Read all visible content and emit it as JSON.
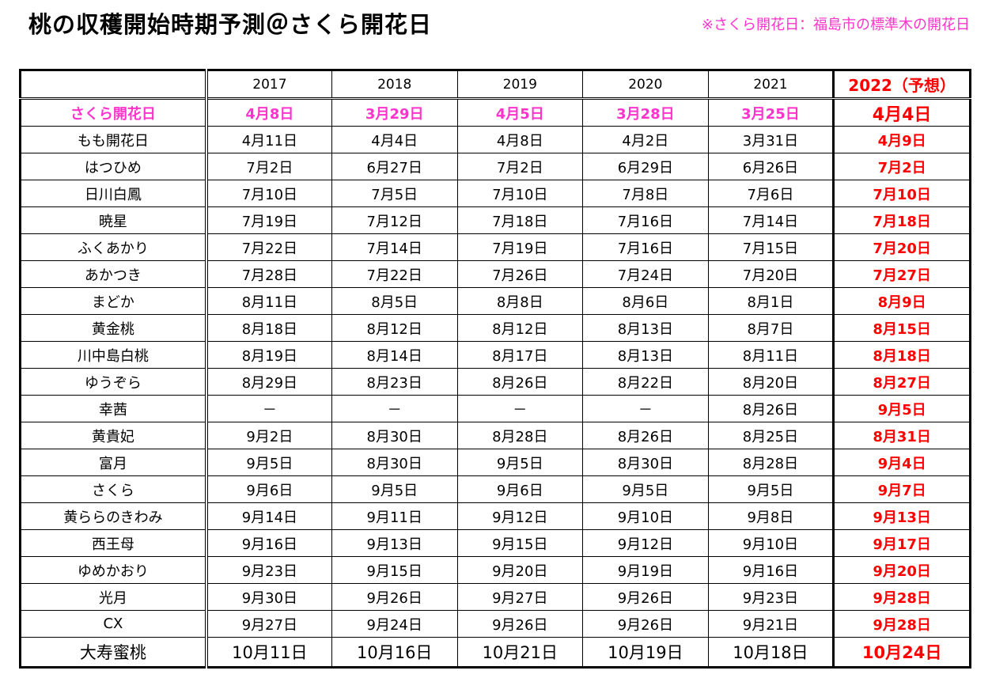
{
  "title": "桃の収穫開始時期予測＠さくら開花日",
  "note": "※さくら開花日：福島市の標準木の開花日",
  "table": {
    "headers": [
      "",
      "2017",
      "2018",
      "2019",
      "2020",
      "2021",
      "2022（予想）"
    ],
    "rows": [
      {
        "name": "さくら開花日",
        "values": [
          "4月8日",
          "3月29日",
          "4月5日",
          "3月28日",
          "3月25日"
        ],
        "prediction": "4月4日"
      },
      {
        "name": "もも開花日",
        "values": [
          "4月11日",
          "4月4日",
          "4月8日",
          "4月2日",
          "3月31日"
        ],
        "prediction": "4月9日"
      },
      {
        "name": "はつひめ",
        "values": [
          "7月2日",
          "6月27日",
          "7月2日",
          "6月29日",
          "6月26日"
        ],
        "prediction": "7月2日"
      },
      {
        "name": "日川白鳳",
        "values": [
          "7月10日",
          "7月5日",
          "7月10日",
          "7月8日",
          "7月6日"
        ],
        "prediction": "7月10日"
      },
      {
        "name": "暁星",
        "values": [
          "7月19日",
          "7月12日",
          "7月18日",
          "7月16日",
          "7月14日"
        ],
        "prediction": "7月18日"
      },
      {
        "name": "ふくあかり",
        "values": [
          "7月22日",
          "7月14日",
          "7月19日",
          "7月16日",
          "7月15日"
        ],
        "prediction": "7月20日"
      },
      {
        "name": "あかつき",
        "values": [
          "7月28日",
          "7月22日",
          "7月26日",
          "7月24日",
          "7月20日"
        ],
        "prediction": "7月27日"
      },
      {
        "name": "まどか",
        "values": [
          "8月11日",
          "8月5日",
          "8月8日",
          "8月6日",
          "8月1日"
        ],
        "prediction": "8月9日"
      },
      {
        "name": "黄金桃",
        "values": [
          "8月18日",
          "8月12日",
          "8月12日",
          "8月13日",
          "8月7日"
        ],
        "prediction": "8月15日"
      },
      {
        "name": "川中島白桃",
        "values": [
          "8月19日",
          "8月14日",
          "8月17日",
          "8月13日",
          "8月11日"
        ],
        "prediction": "8月18日"
      },
      {
        "name": "ゆうぞら",
        "values": [
          "8月29日",
          "8月23日",
          "8月26日",
          "8月22日",
          "8月20日"
        ],
        "prediction": "8月27日"
      },
      {
        "name": "幸茜",
        "values": [
          "－",
          "－",
          "－",
          "－",
          "8月26日"
        ],
        "prediction": "9月5日"
      },
      {
        "name": "黄貴妃",
        "values": [
          "9月2日",
          "8月30日",
          "8月28日",
          "8月26日",
          "8月25日"
        ],
        "prediction": "8月31日"
      },
      {
        "name": "富月",
        "values": [
          "9月5日",
          "8月30日",
          "9月5日",
          "8月30日",
          "8月28日"
        ],
        "prediction": "9月4日"
      },
      {
        "name": "さくら",
        "values": [
          "9月6日",
          "9月5日",
          "9月6日",
          "9月5日",
          "9月5日"
        ],
        "prediction": "9月7日"
      },
      {
        "name": "黄ららのきわみ",
        "values": [
          "9月14日",
          "9月11日",
          "9月12日",
          "9月10日",
          "9月8日"
        ],
        "prediction": "9月13日"
      },
      {
        "name": "西王母",
        "values": [
          "9月16日",
          "9月13日",
          "9月15日",
          "9月12日",
          "9月10日"
        ],
        "prediction": "9月17日"
      },
      {
        "name": "ゆめかおり",
        "values": [
          "9月23日",
          "9月15日",
          "9月20日",
          "9月19日",
          "9月16日"
        ],
        "prediction": "9月20日"
      },
      {
        "name": "光月",
        "values": [
          "9月30日",
          "9月26日",
          "9月27日",
          "9月26日",
          "9月23日"
        ],
        "prediction": "9月28日"
      },
      {
        "name": "CX",
        "values": [
          "9月27日",
          "9月24日",
          "9月26日",
          "9月26日",
          "9月21日"
        ],
        "prediction": "9月28日"
      },
      {
        "name": "大寿蜜桃",
        "values": [
          "10月11日",
          "10月16日",
          "10月21日",
          "10月19日",
          "10月18日"
        ],
        "prediction": "10月24日"
      }
    ]
  },
  "colors": {
    "sakura_pink": "#ff33cc",
    "prediction_red": "#ff0000",
    "grid": "#000000"
  }
}
